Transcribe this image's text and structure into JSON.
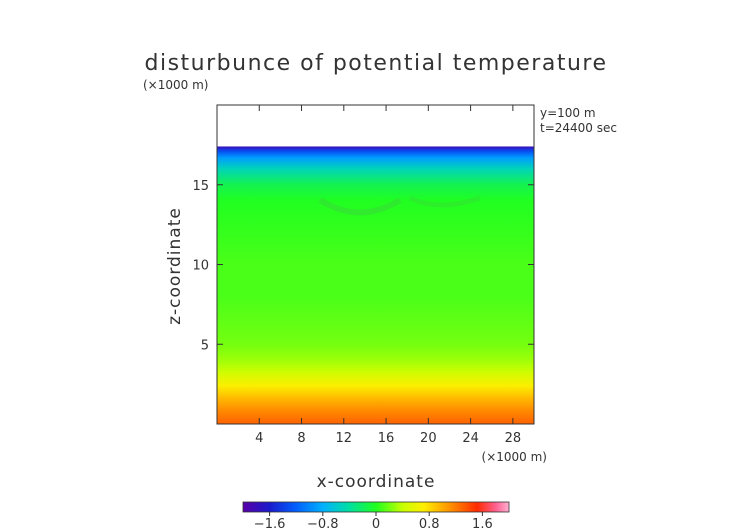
{
  "chart_data": {
    "type": "heatmap",
    "title": "disturbunce of potential temperature",
    "xlabel": "x-coordinate",
    "ylabel": "z-coordinate",
    "x_unit": "(×1000 m)",
    "y_unit": "(×1000 m)",
    "annotations": [
      "y=100 m",
      "t=24400 sec"
    ],
    "xlim": [
      0,
      30
    ],
    "ylim": [
      0,
      20
    ],
    "x_ticks": [
      4,
      8,
      12,
      16,
      20,
      24,
      28
    ],
    "y_ticks": [
      5,
      10,
      15
    ],
    "data_top": 17.4,
    "colorbar": {
      "range": [
        -2.0,
        2.0
      ],
      "ticks": [
        "−1.6",
        "−0.8",
        "0",
        "0.8",
        "1.6"
      ],
      "tick_values": [
        -1.6,
        -0.8,
        0,
        0.8,
        1.6
      ]
    },
    "z_profile": [
      {
        "z": 0.0,
        "value": 1.3
      },
      {
        "z": 0.8,
        "value": 1.15
      },
      {
        "z": 1.6,
        "value": 0.95
      },
      {
        "z": 2.4,
        "value": 0.7
      },
      {
        "z": 3.2,
        "value": 0.45
      },
      {
        "z": 4.0,
        "value": 0.3
      },
      {
        "z": 5.0,
        "value": 0.2
      },
      {
        "z": 6.5,
        "value": 0.15
      },
      {
        "z": 8.0,
        "value": 0.1
      },
      {
        "z": 10.0,
        "value": 0.1
      },
      {
        "z": 12.0,
        "value": 0.05
      },
      {
        "z": 14.0,
        "value": 0.0
      },
      {
        "z": 15.0,
        "value": -0.15
      },
      {
        "z": 16.0,
        "value": -0.5
      },
      {
        "z": 16.7,
        "value": -0.9
      },
      {
        "z": 17.1,
        "value": -1.3
      },
      {
        "z": 17.4,
        "value": -1.8
      }
    ]
  }
}
